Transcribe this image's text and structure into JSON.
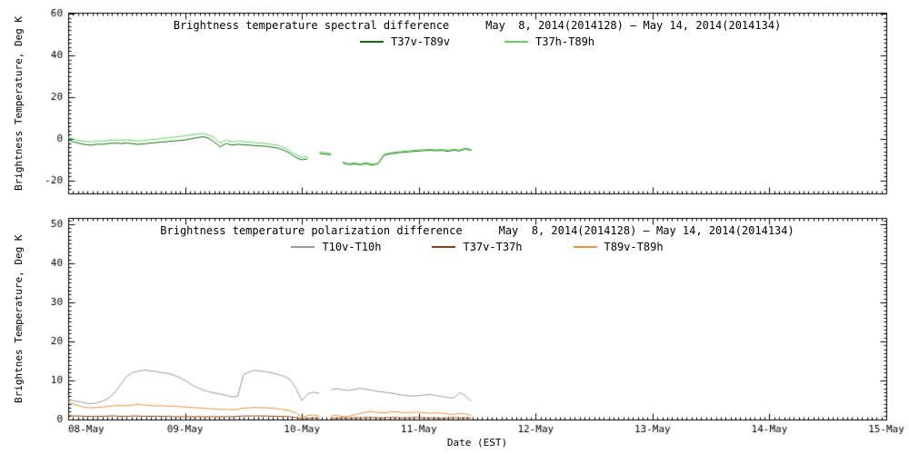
{
  "colors": {
    "background": "#ffffff",
    "frame": "#000000",
    "text": "#000000"
  },
  "chart_data": [
    {
      "type": "line",
      "title": "Brightness temperature spectral difference",
      "date_range": "May  8, 2014(2014128) — May 14, 2014(2014134)",
      "ylabel": "Brightness Temperature, Deg K",
      "xlabel": "",
      "xlim_days": [
        0,
        7
      ],
      "xtick_labels": [
        "08-May",
        "09-May",
        "10-May",
        "11-May",
        "12-May",
        "13-May",
        "14-May",
        "15-May"
      ],
      "show_x_labels": false,
      "ylim": [
        -26.1,
        60.4
      ],
      "yticks": [
        -20,
        0,
        20,
        40,
        60
      ],
      "ytick_labels": [
        "-20",
        "0",
        "20",
        "40",
        "60"
      ],
      "y_minor": 2,
      "x_minor_per_day": 24,
      "grid": false,
      "legend_position": "top-inside",
      "series": [
        {
          "name": "T37v-T89v",
          "color": "#0e6b0e",
          "x_start": 0,
          "x_step": 0.05,
          "y": [
            -0.5,
            -1.5,
            -2.2,
            -2.8,
            -3.0,
            -2.5,
            -2.6,
            -2.2,
            -2.0,
            -2.2,
            -2.0,
            -2.3,
            -2.6,
            -2.4,
            -2.0,
            -1.8,
            -1.5,
            -1.3,
            -1.0,
            -0.8,
            -0.5,
            0,
            0.6,
            1.0,
            0.4,
            -1.5,
            -3.8,
            -2.2,
            -3.0,
            -2.6,
            -2.8,
            -3.0,
            -3.2,
            -3.4,
            -3.6,
            -4.0,
            -4.5,
            -5.5,
            -7.0,
            -9.0,
            -10.0,
            -9.5,
            null,
            -7.0,
            -7.3,
            -7.6,
            null,
            -11.5,
            -12.3,
            -12.0,
            -12.4,
            -11.8,
            -12.5,
            -12.0,
            -8.0,
            -7.2,
            -6.8,
            -6.5,
            -6.3,
            -6.0,
            -5.8,
            -5.6,
            -5.5,
            -5.7,
            -5.5,
            -6.0,
            -5.4,
            -5.8,
            -4.8,
            -5.6
          ]
        },
        {
          "name": "T37h-T89h",
          "color": "#5fd35f",
          "x_start": 0,
          "x_step": 0.05,
          "y": [
            0.8,
            -0.2,
            -0.8,
            -1.2,
            -1.4,
            -1.0,
            -1.1,
            -0.7,
            -0.5,
            -0.7,
            -0.5,
            -0.8,
            -1.0,
            -0.8,
            -0.4,
            -0.2,
            0.2,
            0.5,
            0.8,
            1.2,
            1.5,
            1.9,
            2.3,
            2.6,
            2.0,
            0.6,
            -2.0,
            -0.6,
            -1.4,
            -1.1,
            -1.3,
            -1.5,
            -1.8,
            -2.0,
            -2.3,
            -2.7,
            -3.2,
            -4.2,
            -5.8,
            -7.8,
            -8.8,
            -8.4,
            null,
            -6.2,
            -6.6,
            -6.9,
            null,
            -11.0,
            -11.8,
            -11.5,
            -12.0,
            -11.3,
            -12.1,
            -11.6,
            -7.4,
            -6.7,
            -6.3,
            -6.0,
            -5.8,
            -5.5,
            -5.3,
            -5.1,
            -5.0,
            -5.2,
            -5.0,
            -5.5,
            -4.9,
            -5.3,
            -4.3,
            -5.1
          ]
        }
      ]
    },
    {
      "type": "line",
      "title": "Brightness temperature polarization difference",
      "date_range": "May  8, 2014(2014128) — May 14, 2014(2014134)",
      "ylabel": "Brightnes Temperature, Deg K",
      "xlabel": "Date (EST)",
      "xlim_days": [
        0,
        7
      ],
      "xtick_labels": [
        "08-May",
        "09-May",
        "10-May",
        "11-May",
        "12-May",
        "13-May",
        "14-May",
        "15-May"
      ],
      "show_x_labels": true,
      "ylim": [
        0,
        51.6
      ],
      "yticks": [
        0,
        10,
        20,
        30,
        40,
        50
      ],
      "ytick_labels": [
        "0",
        "10",
        "20",
        "30",
        "40",
        "50"
      ],
      "y_minor": 1,
      "x_minor_per_day": 24,
      "grid": false,
      "legend_position": "top-inside",
      "series": [
        {
          "name": "T10v-T10h",
          "color": "#9a9a9a",
          "x_start": 0,
          "x_step": 0.05,
          "y": [
            5.2,
            4.8,
            4.5,
            4.2,
            4.0,
            4.3,
            4.8,
            5.5,
            7.0,
            9.0,
            11.0,
            12.0,
            12.4,
            12.6,
            12.5,
            12.3,
            12.0,
            11.8,
            11.4,
            10.8,
            10.0,
            9.0,
            8.2,
            7.6,
            7.1,
            6.8,
            6.5,
            6.2,
            5.8,
            5.9,
            11.5,
            12.2,
            12.6,
            12.4,
            12.2,
            11.9,
            11.5,
            11.0,
            10.2,
            8.0,
            4.8,
            6.6,
            7.0,
            6.7,
            null,
            7.6,
            7.9,
            7.6,
            7.4,
            7.7,
            8.0,
            7.7,
            7.5,
            7.2,
            7.0,
            6.8,
            6.6,
            6.3,
            6.1,
            6.0,
            6.1,
            6.3,
            6.4,
            6.1,
            5.9,
            5.6,
            5.5,
            6.9,
            6.0,
            4.6
          ]
        },
        {
          "name": "T37v-T37h",
          "color": "#8b4211",
          "x_start": 0,
          "x_step": 0.05,
          "y": [
            1.0,
            0.9,
            0.9,
            0.8,
            0.8,
            0.8,
            0.8,
            0.9,
            0.9,
            0.8,
            0.8,
            0.9,
            0.9,
            0.8,
            0.8,
            0.8,
            0.8,
            0.8,
            0.7,
            0.7,
            0.7,
            0.7,
            0.7,
            0.7,
            0.7,
            0.7,
            0.7,
            0.7,
            0.7,
            0.8,
            0.9,
            0.9,
            0.9,
            0.9,
            0.9,
            0.8,
            0.8,
            0.8,
            0.7,
            0.5,
            0.2,
            0.3,
            0.4,
            0.3,
            null,
            0.3,
            0.3,
            0.4,
            0.3,
            0.4,
            0.4,
            0.5,
            0.5,
            0.4,
            0.4,
            0.5,
            0.5,
            0.4,
            0.4,
            0.5,
            0.5,
            0.4,
            0.4,
            0.4,
            0.3,
            0.4,
            0.5,
            0.4,
            0.4,
            0.4
          ]
        },
        {
          "name": "T89v-T89h",
          "color": "#e59244",
          "x_start": 0,
          "x_step": 0.05,
          "y": [
            4.6,
            3.9,
            3.4,
            3.1,
            3.0,
            3.1,
            3.2,
            3.4,
            3.5,
            3.6,
            3.5,
            3.7,
            3.9,
            3.7,
            3.6,
            3.5,
            3.5,
            3.4,
            3.4,
            3.3,
            3.2,
            3.1,
            3.0,
            2.9,
            2.8,
            2.7,
            2.6,
            2.6,
            2.5,
            2.6,
            2.9,
            3.0,
            3.1,
            3.0,
            3.0,
            2.9,
            2.7,
            2.5,
            2.2,
            1.6,
            0.6,
            1.0,
            1.2,
            0.8,
            null,
            0.9,
            1.1,
            0.7,
            0.8,
            1.2,
            1.6,
            1.9,
            2.0,
            1.8,
            1.7,
            1.9,
            2.0,
            1.8,
            1.7,
            1.8,
            1.9,
            1.7,
            1.6,
            1.7,
            1.6,
            1.4,
            1.3,
            1.6,
            1.4,
            1.1
          ]
        }
      ]
    }
  ]
}
